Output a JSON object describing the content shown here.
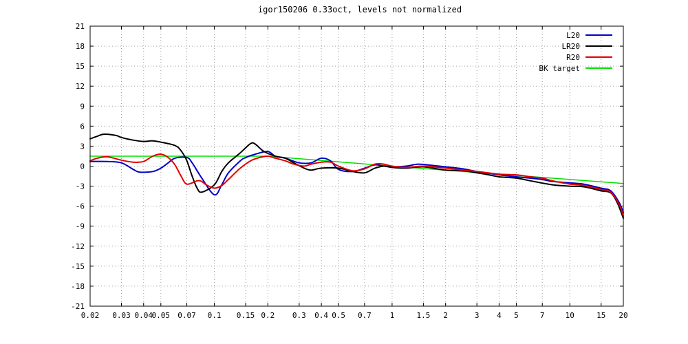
{
  "chart_data": {
    "type": "line",
    "title": "igor150206   0.33oct, levels not normalized",
    "xlabel": "",
    "ylabel": "",
    "x_scale": "log",
    "xlim": [
      0.02,
      20
    ],
    "ylim": [
      -21,
      21
    ],
    "x_ticks": [
      0.02,
      0.03,
      0.04,
      0.05,
      0.07,
      0.1,
      0.15,
      0.2,
      0.3,
      0.4,
      0.5,
      0.7,
      1,
      1.5,
      2,
      3,
      4,
      5,
      7,
      10,
      15,
      20
    ],
    "x_tick_labels": [
      "0.02",
      "0.03",
      "0.04",
      "0.05",
      "0.07",
      "0.1",
      "0.15",
      "0.2",
      "0.3",
      "0.4",
      "0.5",
      "0.7",
      "1",
      "1.5",
      "2",
      "3",
      "4",
      "5",
      "7",
      "10",
      "15",
      "20"
    ],
    "y_ticks": [
      21,
      18,
      15,
      12,
      9,
      6,
      3,
      0,
      -3,
      -6,
      -9,
      -12,
      -15,
      -18,
      -21
    ],
    "y_tick_labels": [
      "21",
      "18",
      "15",
      "12",
      "9",
      "6",
      "3",
      "0",
      "-3",
      "-6",
      "-9",
      "-12",
      "-15",
      "-18",
      "-21"
    ],
    "grid": true,
    "legend_position": "top-right",
    "series": [
      {
        "name": "L20",
        "color": "#0000c8",
        "points": [
          [
            0.02,
            0.7
          ],
          [
            0.025,
            0.7
          ],
          [
            0.03,
            0.5
          ],
          [
            0.035,
            -0.5
          ],
          [
            0.038,
            -0.9
          ],
          [
            0.045,
            -0.8
          ],
          [
            0.05,
            -0.3
          ],
          [
            0.055,
            0.5
          ],
          [
            0.06,
            1.2
          ],
          [
            0.07,
            1.3
          ],
          [
            0.075,
            0.5
          ],
          [
            0.085,
            -1.8
          ],
          [
            0.1,
            -4.3
          ],
          [
            0.11,
            -2.8
          ],
          [
            0.12,
            -1.0
          ],
          [
            0.14,
            0.8
          ],
          [
            0.15,
            1.3
          ],
          [
            0.17,
            1.8
          ],
          [
            0.2,
            2.2
          ],
          [
            0.22,
            1.5
          ],
          [
            0.25,
            1.2
          ],
          [
            0.3,
            0.5
          ],
          [
            0.35,
            0.5
          ],
          [
            0.4,
            1.2
          ],
          [
            0.45,
            0.8
          ],
          [
            0.5,
            -0.5
          ],
          [
            0.6,
            -0.8
          ],
          [
            0.7,
            -0.3
          ],
          [
            0.8,
            0.2
          ],
          [
            0.9,
            0.0
          ],
          [
            1,
            -0.1
          ],
          [
            1.2,
            0.0
          ],
          [
            1.4,
            0.3
          ],
          [
            1.7,
            0.1
          ],
          [
            2,
            -0.1
          ],
          [
            2.5,
            -0.4
          ],
          [
            3,
            -0.8
          ],
          [
            4,
            -1.3
          ],
          [
            5,
            -1.6
          ],
          [
            6,
            -1.8
          ],
          [
            7,
            -2.0
          ],
          [
            8,
            -2.3
          ],
          [
            10,
            -2.5
          ],
          [
            12,
            -2.7
          ],
          [
            15,
            -3.3
          ],
          [
            17,
            -3.7
          ],
          [
            19,
            -5.5
          ],
          [
            20,
            -7.0
          ]
        ]
      },
      {
        "name": "LR20",
        "color": "#000000",
        "points": [
          [
            0.02,
            4.1
          ],
          [
            0.022,
            4.5
          ],
          [
            0.024,
            4.8
          ],
          [
            0.028,
            4.6
          ],
          [
            0.03,
            4.3
          ],
          [
            0.035,
            3.9
          ],
          [
            0.04,
            3.7
          ],
          [
            0.045,
            3.8
          ],
          [
            0.05,
            3.6
          ],
          [
            0.06,
            3.1
          ],
          [
            0.065,
            2.3
          ],
          [
            0.07,
            0.8
          ],
          [
            0.075,
            -1.5
          ],
          [
            0.08,
            -3.3
          ],
          [
            0.085,
            -3.9
          ],
          [
            0.1,
            -2.8
          ],
          [
            0.11,
            -0.8
          ],
          [
            0.12,
            0.5
          ],
          [
            0.14,
            2.0
          ],
          [
            0.16,
            3.4
          ],
          [
            0.17,
            3.3
          ],
          [
            0.19,
            2.2
          ],
          [
            0.22,
            1.5
          ],
          [
            0.25,
            1.2
          ],
          [
            0.28,
            0.5
          ],
          [
            0.32,
            -0.3
          ],
          [
            0.35,
            -0.6
          ],
          [
            0.4,
            -0.3
          ],
          [
            0.5,
            -0.3
          ],
          [
            0.6,
            -0.8
          ],
          [
            0.7,
            -1.0
          ],
          [
            0.8,
            -0.3
          ],
          [
            0.9,
            0.0
          ],
          [
            1,
            -0.2
          ],
          [
            1.2,
            -0.3
          ],
          [
            1.5,
            -0.1
          ],
          [
            2,
            -0.6
          ],
          [
            2.5,
            -0.7
          ],
          [
            3,
            -1.0
          ],
          [
            3.5,
            -1.3
          ],
          [
            4,
            -1.6
          ],
          [
            5,
            -1.8
          ],
          [
            6,
            -2.2
          ],
          [
            8,
            -2.8
          ],
          [
            10,
            -3.0
          ],
          [
            12,
            -3.1
          ],
          [
            15,
            -3.7
          ],
          [
            17,
            -4.0
          ],
          [
            18.5,
            -5.5
          ],
          [
            20,
            -7.8
          ]
        ]
      },
      {
        "name": "R20",
        "color": "#e00000",
        "points": [
          [
            0.02,
            0.8
          ],
          [
            0.022,
            1.2
          ],
          [
            0.025,
            1.4
          ],
          [
            0.03,
            0.9
          ],
          [
            0.035,
            0.6
          ],
          [
            0.04,
            0.7
          ],
          [
            0.045,
            1.5
          ],
          [
            0.05,
            1.8
          ],
          [
            0.055,
            1.3
          ],
          [
            0.06,
            0.2
          ],
          [
            0.065,
            -1.5
          ],
          [
            0.07,
            -2.7
          ],
          [
            0.08,
            -2.2
          ],
          [
            0.085,
            -2.3
          ],
          [
            0.09,
            -2.8
          ],
          [
            0.1,
            -3.3
          ],
          [
            0.11,
            -2.9
          ],
          [
            0.12,
            -2.0
          ],
          [
            0.14,
            -0.3
          ],
          [
            0.16,
            0.8
          ],
          [
            0.18,
            1.3
          ],
          [
            0.2,
            1.5
          ],
          [
            0.22,
            1.2
          ],
          [
            0.25,
            0.8
          ],
          [
            0.28,
            0.3
          ],
          [
            0.32,
            0.0
          ],
          [
            0.35,
            0.3
          ],
          [
            0.4,
            0.6
          ],
          [
            0.45,
            0.6
          ],
          [
            0.5,
            0.0
          ],
          [
            0.6,
            -0.7
          ],
          [
            0.7,
            -0.4
          ],
          [
            0.8,
            0.3
          ],
          [
            0.9,
            0.3
          ],
          [
            1,
            0.0
          ],
          [
            1.2,
            -0.2
          ],
          [
            1.5,
            0.0
          ],
          [
            2,
            -0.3
          ],
          [
            2.5,
            -0.6
          ],
          [
            3,
            -0.8
          ],
          [
            4,
            -1.2
          ],
          [
            5,
            -1.3
          ],
          [
            6,
            -1.6
          ],
          [
            7,
            -1.8
          ],
          [
            8,
            -2.2
          ],
          [
            10,
            -2.7
          ],
          [
            12,
            -2.9
          ],
          [
            15,
            -3.5
          ],
          [
            17,
            -3.9
          ],
          [
            19,
            -5.8
          ],
          [
            20,
            -7.5
          ]
        ]
      },
      {
        "name": "BK target",
        "color": "#00e000",
        "points": [
          [
            0.02,
            1.5
          ],
          [
            0.2,
            1.5
          ],
          [
            1,
            0.0
          ],
          [
            20,
            -2.6
          ]
        ]
      }
    ]
  }
}
